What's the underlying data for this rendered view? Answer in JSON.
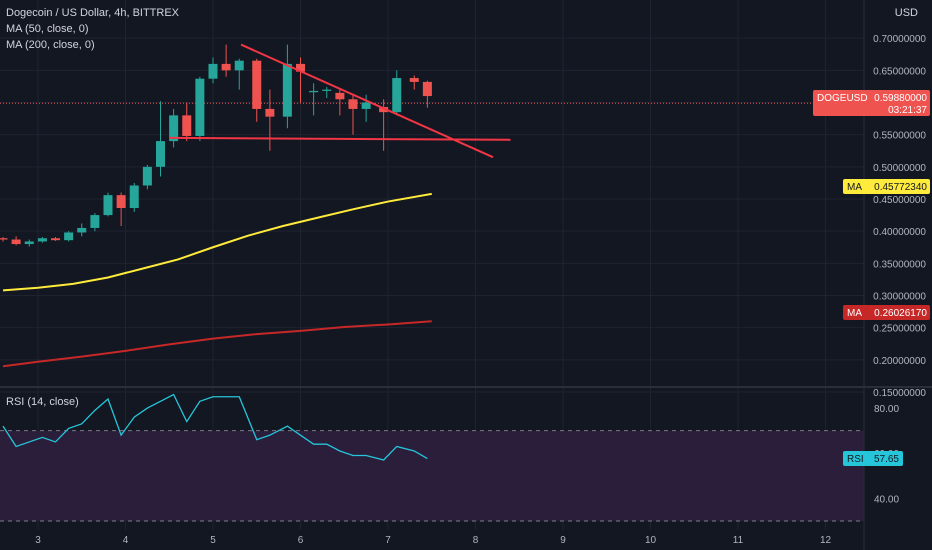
{
  "header": {
    "symbol_title": "Dogecoin / US Dollar, 4h, BITTREX",
    "ma50_label": "MA (50, close, 0)",
    "ma200_label": "MA (200, close, 0)",
    "axis_currency": "USD"
  },
  "rsi_panel": {
    "label": "RSI (14, close)"
  },
  "price_badge": {
    "symbol": "DOGEUSD",
    "value": "0.59880000",
    "countdown": "03:21:37"
  },
  "ma50_badge": {
    "name": "MA",
    "value": "0.45772340"
  },
  "ma200_badge": {
    "name": "MA",
    "value": "0.26026170"
  },
  "rsi_badge": {
    "name": "RSI",
    "value": "57.65"
  },
  "colors": {
    "background": "#131722",
    "up": "#26a69a",
    "down": "#ef5350",
    "ma50": "#ffeb3b",
    "ma200": "#c62828",
    "trendline": "#f23645",
    "rsi_line": "#26c6da",
    "rsi_band": "#2a1e3b"
  },
  "chart_data": [
    {
      "type": "candlestick",
      "title": "Dogecoin / US Dollar, 4h, BITTREX",
      "ylim": [
        0.15,
        0.75
      ],
      "y_ticks": [
        "0.15000000",
        "0.20000000",
        "0.25000000",
        "0.30000000",
        "0.35000000",
        "0.40000000",
        "0.45000000",
        "0.50000000",
        "0.55000000",
        "0.60000000",
        "0.65000000",
        "0.70000000"
      ],
      "x_ticks": [
        "3",
        "4",
        "5",
        "6",
        "7",
        "8",
        "9",
        "10",
        "11",
        "12"
      ],
      "x_tick_values": [
        3,
        4,
        5,
        6,
        7,
        8,
        9,
        10,
        11,
        12
      ],
      "xlim": [
        2.55,
        12.45
      ],
      "candles": [
        {
          "t": 2.6,
          "o": 0.389,
          "h": 0.391,
          "l": 0.384,
          "c": 0.387
        },
        {
          "t": 2.75,
          "o": 0.387,
          "h": 0.392,
          "l": 0.378,
          "c": 0.38
        },
        {
          "t": 2.9,
          "o": 0.38,
          "h": 0.387,
          "l": 0.376,
          "c": 0.384
        },
        {
          "t": 3.05,
          "o": 0.384,
          "h": 0.391,
          "l": 0.382,
          "c": 0.389
        },
        {
          "t": 3.2,
          "o": 0.389,
          "h": 0.391,
          "l": 0.385,
          "c": 0.386
        },
        {
          "t": 3.35,
          "o": 0.386,
          "h": 0.4,
          "l": 0.384,
          "c": 0.398
        },
        {
          "t": 3.5,
          "o": 0.398,
          "h": 0.412,
          "l": 0.392,
          "c": 0.405
        },
        {
          "t": 3.65,
          "o": 0.405,
          "h": 0.428,
          "l": 0.4,
          "c": 0.425
        },
        {
          "t": 3.8,
          "o": 0.425,
          "h": 0.46,
          "l": 0.423,
          "c": 0.456
        },
        {
          "t": 3.95,
          "o": 0.456,
          "h": 0.46,
          "l": 0.408,
          "c": 0.436
        },
        {
          "t": 4.1,
          "o": 0.436,
          "h": 0.475,
          "l": 0.43,
          "c": 0.471
        },
        {
          "t": 4.25,
          "o": 0.471,
          "h": 0.503,
          "l": 0.465,
          "c": 0.5
        },
        {
          "t": 4.4,
          "o": 0.5,
          "h": 0.602,
          "l": 0.485,
          "c": 0.54
        },
        {
          "t": 4.55,
          "o": 0.54,
          "h": 0.59,
          "l": 0.53,
          "c": 0.58
        },
        {
          "t": 4.7,
          "o": 0.58,
          "h": 0.6,
          "l": 0.54,
          "c": 0.548
        },
        {
          "t": 4.85,
          "o": 0.548,
          "h": 0.64,
          "l": 0.54,
          "c": 0.637
        },
        {
          "t": 5.0,
          "o": 0.637,
          "h": 0.67,
          "l": 0.63,
          "c": 0.66
        },
        {
          "t": 5.15,
          "o": 0.66,
          "h": 0.69,
          "l": 0.64,
          "c": 0.65
        },
        {
          "t": 5.3,
          "o": 0.65,
          "h": 0.668,
          "l": 0.62,
          "c": 0.665
        },
        {
          "t": 5.5,
          "o": 0.665,
          "h": 0.668,
          "l": 0.57,
          "c": 0.59
        },
        {
          "t": 5.65,
          "o": 0.59,
          "h": 0.62,
          "l": 0.525,
          "c": 0.578
        },
        {
          "t": 5.85,
          "o": 0.578,
          "h": 0.69,
          "l": 0.56,
          "c": 0.66
        },
        {
          "t": 6.0,
          "o": 0.66,
          "h": 0.67,
          "l": 0.6,
          "c": 0.648
        },
        {
          "t": 6.15,
          "o": 0.616,
          "h": 0.63,
          "l": 0.58,
          "c": 0.618
        },
        {
          "t": 6.3,
          "o": 0.618,
          "h": 0.624,
          "l": 0.607,
          "c": 0.62
        },
        {
          "t": 6.45,
          "o": 0.615,
          "h": 0.62,
          "l": 0.58,
          "c": 0.605
        },
        {
          "t": 6.6,
          "o": 0.605,
          "h": 0.612,
          "l": 0.55,
          "c": 0.59
        },
        {
          "t": 6.75,
          "o": 0.59,
          "h": 0.612,
          "l": 0.57,
          "c": 0.6
        },
        {
          "t": 6.95,
          "o": 0.593,
          "h": 0.605,
          "l": 0.525,
          "c": 0.585
        },
        {
          "t": 7.1,
          "o": 0.585,
          "h": 0.65,
          "l": 0.58,
          "c": 0.638
        },
        {
          "t": 7.3,
          "o": 0.638,
          "h": 0.642,
          "l": 0.62,
          "c": 0.632
        },
        {
          "t": 7.45,
          "o": 0.632,
          "h": 0.634,
          "l": 0.592,
          "c": 0.61
        }
      ],
      "ma50": {
        "name": "MA (50, close, 0)",
        "points": [
          [
            2.6,
            0.308
          ],
          [
            3.0,
            0.312
          ],
          [
            3.4,
            0.318
          ],
          [
            3.8,
            0.328
          ],
          [
            4.2,
            0.342
          ],
          [
            4.6,
            0.356
          ],
          [
            5.0,
            0.375
          ],
          [
            5.4,
            0.393
          ],
          [
            5.8,
            0.408
          ],
          [
            6.2,
            0.421
          ],
          [
            6.6,
            0.434
          ],
          [
            7.0,
            0.446
          ],
          [
            7.5,
            0.458
          ]
        ]
      },
      "ma200": {
        "name": "MA (200, close, 0)",
        "points": [
          [
            2.6,
            0.19
          ],
          [
            3.0,
            0.197
          ],
          [
            3.5,
            0.205
          ],
          [
            4.0,
            0.214
          ],
          [
            4.5,
            0.224
          ],
          [
            5.0,
            0.233
          ],
          [
            5.5,
            0.24
          ],
          [
            6.0,
            0.245
          ],
          [
            6.5,
            0.251
          ],
          [
            7.0,
            0.255
          ],
          [
            7.5,
            0.26
          ]
        ]
      },
      "trendlines": [
        {
          "from": [
            5.32,
            0.69
          ],
          "to": [
            8.2,
            0.515
          ]
        },
        {
          "from": [
            4.5,
            0.545
          ],
          "to": [
            8.4,
            0.542
          ]
        }
      ],
      "last_price": 0.5988
    },
    {
      "type": "line",
      "title": "RSI (14, close)",
      "ylim": [
        26,
        88
      ],
      "y_ticks": [
        "80.00",
        "60.00",
        "40.00"
      ],
      "y_tick_values": [
        80,
        60,
        40
      ],
      "upper_band": 70,
      "lower_band": 30,
      "series": [
        {
          "name": "RSI",
          "values": [
            [
              2.6,
              72
            ],
            [
              2.75,
              63
            ],
            [
              2.9,
              65
            ],
            [
              3.05,
              67
            ],
            [
              3.2,
              65
            ],
            [
              3.35,
              71
            ],
            [
              3.5,
              73
            ],
            [
              3.65,
              79
            ],
            [
              3.8,
              84
            ],
            [
              3.95,
              68
            ],
            [
              4.1,
              76
            ],
            [
              4.25,
              80
            ],
            [
              4.4,
              83
            ],
            [
              4.55,
              86
            ],
            [
              4.7,
              74
            ],
            [
              4.85,
              83
            ],
            [
              5.0,
              85
            ],
            [
              5.15,
              85
            ],
            [
              5.3,
              85
            ],
            [
              5.5,
              66
            ],
            [
              5.65,
              68
            ],
            [
              5.85,
              72
            ],
            [
              6.0,
              68
            ],
            [
              6.15,
              64
            ],
            [
              6.3,
              64
            ],
            [
              6.45,
              61
            ],
            [
              6.6,
              59
            ],
            [
              6.75,
              59
            ],
            [
              6.95,
              57
            ],
            [
              7.1,
              63
            ],
            [
              7.3,
              61
            ],
            [
              7.45,
              57.65
            ]
          ]
        }
      ]
    }
  ]
}
